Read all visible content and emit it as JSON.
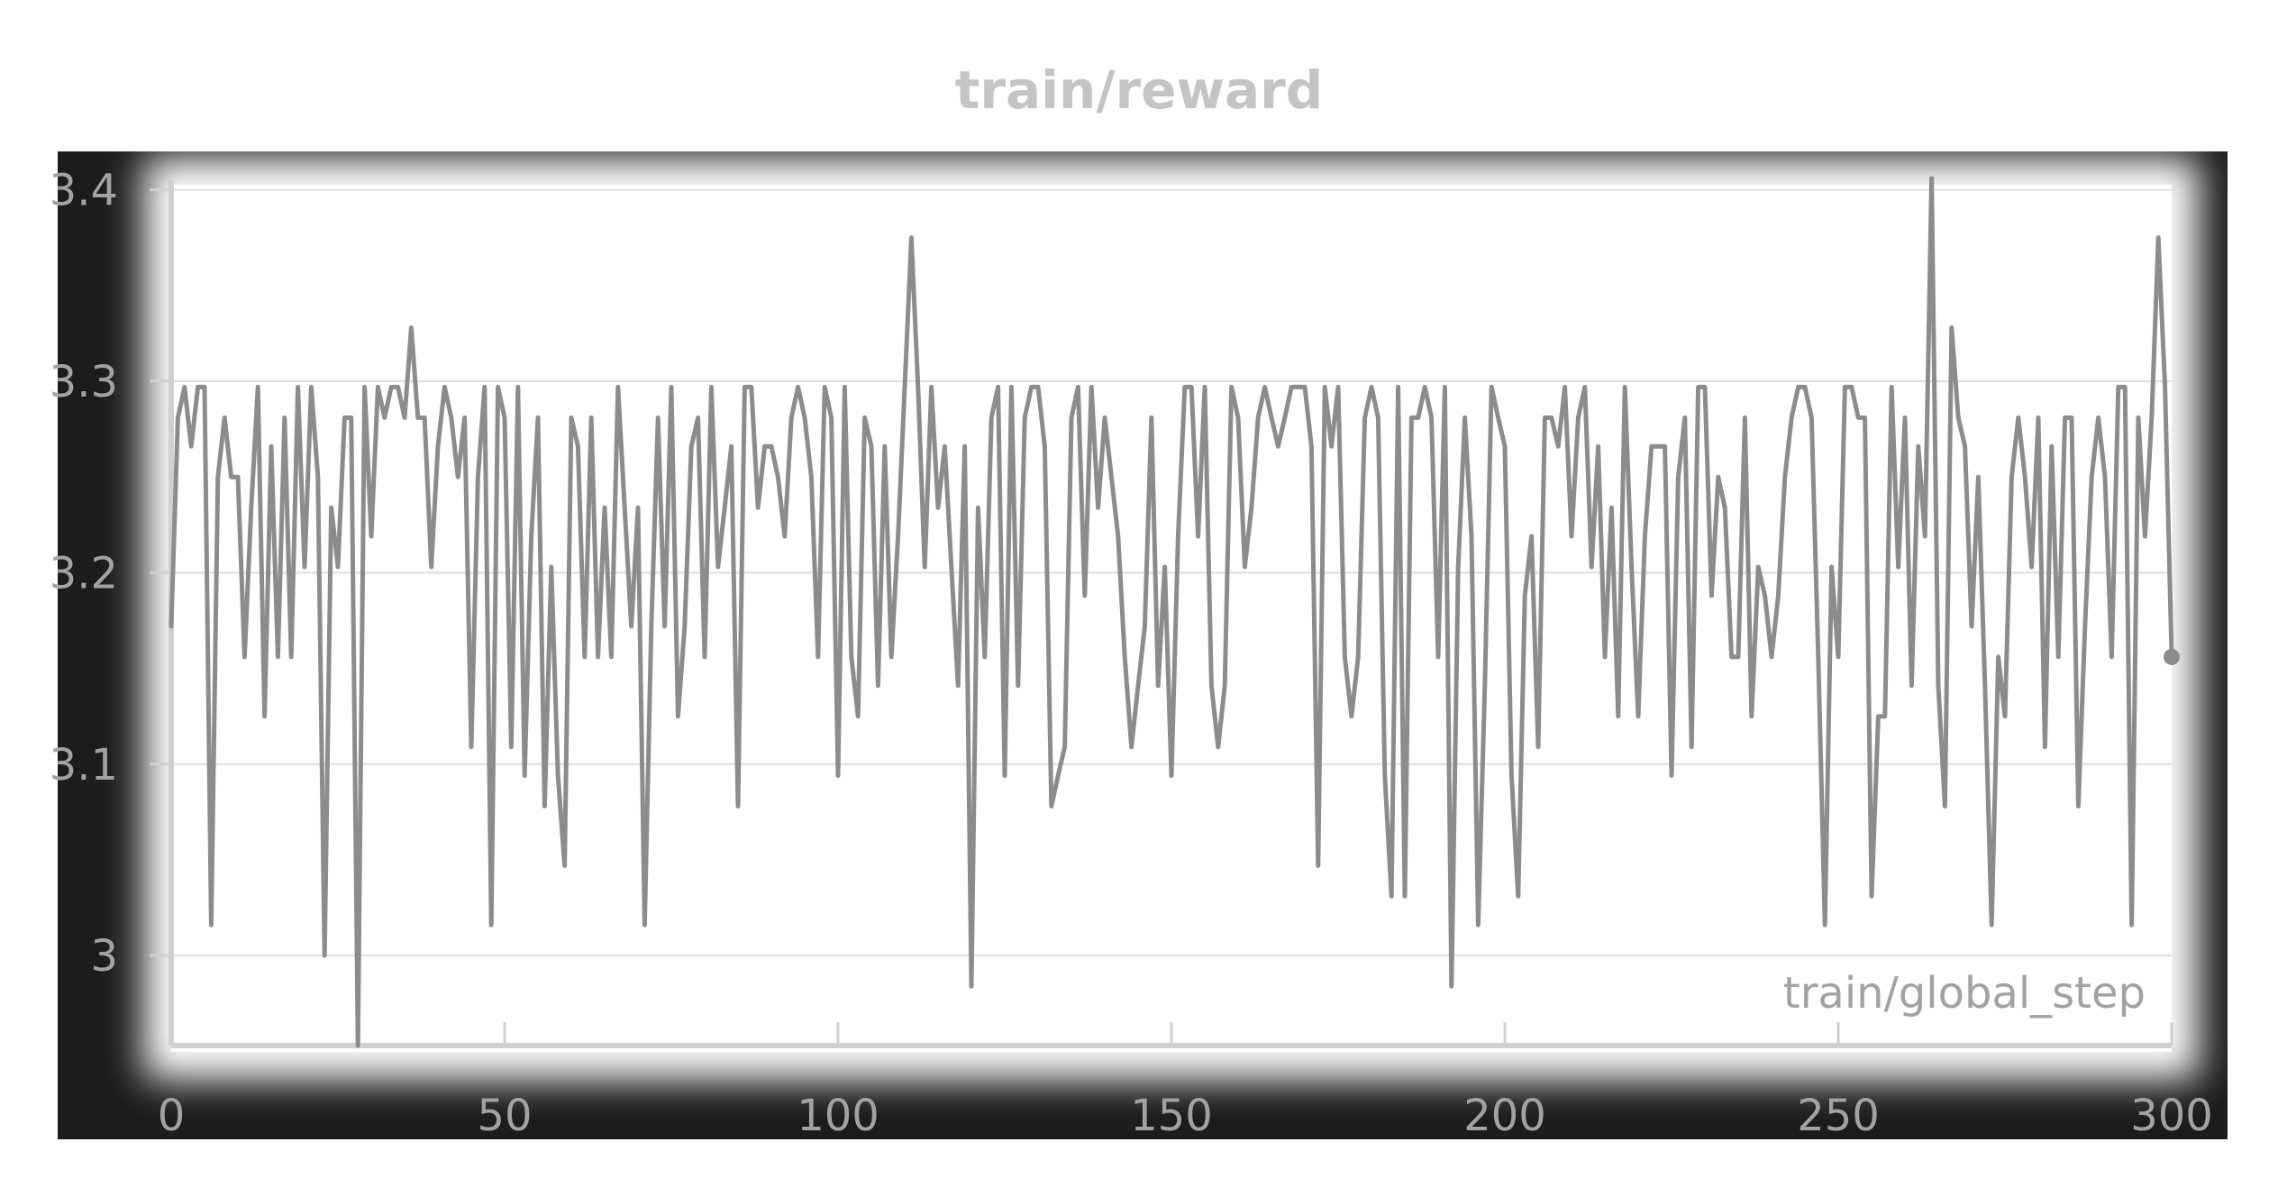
{
  "chart_data": {
    "type": "line",
    "title": "train/reward",
    "xlabel": "train/global_step",
    "ylabel": "",
    "xlim": [
      0,
      300
    ],
    "ylim": [
      2.953,
      3.405
    ],
    "x_ticks": [
      0,
      50,
      100,
      150,
      200,
      250,
      300
    ],
    "y_ticks": [
      3.0,
      3.1,
      3.2,
      3.3,
      3.4
    ],
    "y_tick_labels": [
      "3",
      "3.1",
      "3.2",
      "3.3",
      "3.4"
    ],
    "grid": true,
    "legend": "none",
    "series": [
      {
        "color": "#8c8c8c",
        "x": [
          0,
          1,
          2,
          3,
          4,
          5,
          6,
          7,
          8,
          9,
          10,
          11,
          12,
          13,
          14,
          15,
          16,
          17,
          18,
          19,
          20,
          21,
          22,
          23,
          24,
          25,
          26,
          27,
          28,
          29,
          30,
          31,
          32,
          33,
          34,
          35,
          36,
          37,
          38,
          39,
          40,
          41,
          42,
          43,
          44,
          45,
          46,
          47,
          48,
          49,
          50,
          51,
          52,
          53,
          54,
          55,
          56,
          57,
          58,
          59,
          60,
          61,
          62,
          63,
          64,
          65,
          66,
          67,
          68,
          69,
          70,
          71,
          72,
          73,
          74,
          75,
          76,
          77,
          78,
          79,
          80,
          81,
          82,
          83,
          84,
          85,
          86,
          87,
          88,
          89,
          90,
          91,
          92,
          93,
          94,
          95,
          96,
          97,
          98,
          99,
          100,
          101,
          102,
          103,
          104,
          105,
          106,
          107,
          108,
          109,
          110,
          111,
          112,
          113,
          114,
          115,
          116,
          117,
          118,
          119,
          120,
          121,
          122,
          123,
          124,
          125,
          126,
          127,
          128,
          129,
          130,
          131,
          132,
          133,
          134,
          135,
          136,
          137,
          138,
          139,
          140,
          141,
          142,
          143,
          144,
          145,
          146,
          147,
          148,
          149,
          150,
          151,
          152,
          153,
          154,
          155,
          156,
          157,
          158,
          159,
          160,
          161,
          162,
          163,
          164,
          165,
          166,
          167,
          168,
          169,
          170,
          171,
          172,
          173,
          174,
          175,
          176,
          177,
          178,
          179,
          180,
          181,
          182,
          183,
          184,
          185,
          186,
          187,
          188,
          189,
          190,
          191,
          192,
          193,
          194,
          195,
          196,
          197,
          198,
          199,
          200,
          201,
          202,
          203,
          204,
          205,
          206,
          207,
          208,
          209,
          210,
          211,
          212,
          213,
          214,
          215,
          216,
          217,
          218,
          219,
          220,
          221,
          222,
          223,
          224,
          225,
          226,
          227,
          228,
          229,
          230,
          231,
          232,
          233,
          234,
          235,
          236,
          237,
          238,
          239,
          240,
          241,
          242,
          243,
          244,
          245,
          246,
          247,
          248,
          249,
          250,
          251,
          252,
          253,
          254,
          255,
          256,
          257,
          258,
          259,
          260,
          261,
          262,
          263,
          264,
          265,
          266,
          267,
          268,
          269,
          270,
          271,
          272,
          273,
          274,
          275,
          276,
          277,
          278,
          279,
          280,
          281,
          282,
          283,
          284,
          285,
          286,
          287,
          288,
          289,
          290,
          291,
          292,
          293,
          294,
          295,
          296,
          297,
          298,
          299,
          300
        ],
        "values": [
          3.172,
          3.281,
          3.297,
          3.266,
          3.297,
          3.297,
          3.016,
          3.25,
          3.281,
          3.25,
          3.25,
          3.156,
          3.234,
          3.297,
          3.125,
          3.266,
          3.156,
          3.281,
          3.156,
          3.297,
          3.203,
          3.297,
          3.25,
          3.0,
          3.234,
          3.203,
          3.281,
          3.281,
          2.953,
          3.297,
          3.219,
          3.297,
          3.281,
          3.297,
          3.297,
          3.281,
          3.328,
          3.281,
          3.281,
          3.203,
          3.266,
          3.297,
          3.281,
          3.25,
          3.281,
          3.109,
          3.25,
          3.297,
          3.016,
          3.297,
          3.281,
          3.109,
          3.297,
          3.094,
          3.219,
          3.281,
          3.078,
          3.203,
          3.094,
          3.047,
          3.281,
          3.266,
          3.156,
          3.281,
          3.156,
          3.234,
          3.156,
          3.297,
          3.234,
          3.172,
          3.234,
          3.016,
          3.172,
          3.281,
          3.172,
          3.297,
          3.125,
          3.172,
          3.266,
          3.281,
          3.156,
          3.297,
          3.203,
          3.234,
          3.266,
          3.078,
          3.297,
          3.297,
          3.234,
          3.266,
          3.266,
          3.25,
          3.219,
          3.281,
          3.297,
          3.281,
          3.25,
          3.156,
          3.297,
          3.281,
          3.094,
          3.297,
          3.156,
          3.125,
          3.281,
          3.266,
          3.141,
          3.266,
          3.156,
          3.219,
          3.297,
          3.375,
          3.297,
          3.203,
          3.297,
          3.234,
          3.266,
          3.203,
          3.141,
          3.266,
          2.984,
          3.234,
          3.156,
          3.281,
          3.297,
          3.094,
          3.297,
          3.141,
          3.281,
          3.297,
          3.297,
          3.266,
          3.078,
          3.094,
          3.109,
          3.281,
          3.297,
          3.188,
          3.297,
          3.234,
          3.281,
          3.25,
          3.219,
          3.156,
          3.109,
          3.141,
          3.172,
          3.281,
          3.141,
          3.203,
          3.094,
          3.219,
          3.297,
          3.297,
          3.219,
          3.297,
          3.141,
          3.109,
          3.141,
          3.297,
          3.281,
          3.203,
          3.234,
          3.281,
          3.297,
          3.281,
          3.266,
          3.281,
          3.297,
          3.297,
          3.297,
          3.266,
          3.047,
          3.297,
          3.266,
          3.297,
          3.156,
          3.125,
          3.156,
          3.281,
          3.297,
          3.281,
          3.094,
          3.031,
          3.297,
          3.031,
          3.281,
          3.281,
          3.297,
          3.281,
          3.156,
          3.297,
          2.984,
          3.203,
          3.281,
          3.219,
          3.016,
          3.141,
          3.297,
          3.281,
          3.266,
          3.094,
          3.031,
          3.188,
          3.219,
          3.109,
          3.281,
          3.281,
          3.266,
          3.297,
          3.219,
          3.281,
          3.297,
          3.203,
          3.266,
          3.156,
          3.234,
          3.125,
          3.297,
          3.203,
          3.125,
          3.219,
          3.266,
          3.266,
          3.266,
          3.094,
          3.25,
          3.281,
          3.109,
          3.297,
          3.297,
          3.188,
          3.25,
          3.234,
          3.156,
          3.156,
          3.281,
          3.125,
          3.203,
          3.188,
          3.156,
          3.188,
          3.25,
          3.281,
          3.297,
          3.297,
          3.281,
          3.156,
          3.016,
          3.203,
          3.156,
          3.297,
          3.297,
          3.281,
          3.281,
          3.031,
          3.125,
          3.125,
          3.297,
          3.203,
          3.281,
          3.141,
          3.266,
          3.219,
          3.406,
          3.141,
          3.078,
          3.328,
          3.281,
          3.266,
          3.172,
          3.25,
          3.141,
          3.016,
          3.156,
          3.125,
          3.25,
          3.281,
          3.25,
          3.203,
          3.281,
          3.109,
          3.266,
          3.156,
          3.281,
          3.281,
          3.078,
          3.172,
          3.25,
          3.281,
          3.25,
          3.156,
          3.297,
          3.297,
          3.016,
          3.281,
          3.219,
          3.281,
          3.375,
          3.297,
          3.156
        ]
      }
    ]
  }
}
